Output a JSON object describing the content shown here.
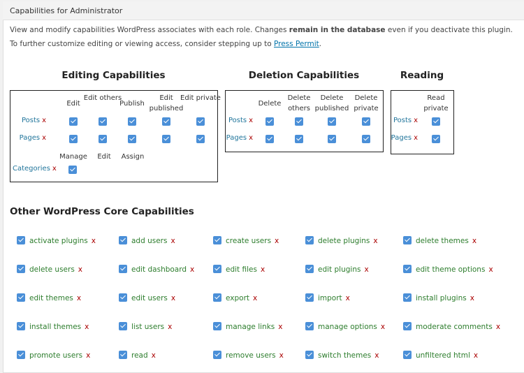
{
  "header": {
    "title": "Capabilities for Administrator"
  },
  "intro": {
    "line1_pre": "View and modify capabilities WordPress associates with each role. Changes ",
    "line1_bold": "remain in the database",
    "line1_post": " even if you deactivate this plugin.",
    "line2_pre": "To further customize editing or viewing access, consider stepping up to ",
    "line2_link": "Press Permit",
    "line2_post": "."
  },
  "editing": {
    "title": "Editing Capabilities",
    "columns": [
      "Edit",
      "Edit others",
      "Publish",
      "Edit published",
      "Edit private"
    ],
    "rows": [
      {
        "label": "Posts",
        "remove": "x"
      },
      {
        "label": "Pages",
        "remove": "x"
      }
    ],
    "tax_columns": [
      "Manage",
      "Edit",
      "Assign"
    ],
    "tax_row": {
      "label": "Categories",
      "remove": "x"
    }
  },
  "deletion": {
    "title": "Deletion Capabilities",
    "columns": [
      "Delete",
      "Delete others",
      "Delete published",
      "Delete private"
    ],
    "rows": [
      {
        "label": "Posts",
        "remove": "x"
      },
      {
        "label": "Pages",
        "remove": "x"
      }
    ]
  },
  "reading": {
    "title": "Reading",
    "columns": [
      "Read private"
    ],
    "rows": [
      {
        "label": "Posts",
        "remove": "x"
      },
      {
        "label": "Pages",
        "remove": "x"
      }
    ]
  },
  "other": {
    "title": "Other WordPress Core Capabilities",
    "remove": "x",
    "items": [
      "activate plugins",
      "add users",
      "create users",
      "delete plugins",
      "delete themes",
      "delete users",
      "edit dashboard",
      "edit files",
      "edit plugins",
      "edit theme options",
      "edit themes",
      "edit users",
      "export",
      "import",
      "install plugins",
      "install themes",
      "list users",
      "manage links",
      "manage options",
      "moderate comments",
      "promote users",
      "read",
      "remove users",
      "switch themes",
      "unfiltered html"
    ]
  },
  "colors": {
    "checkbox": "#4a8fd8",
    "capability_text": "#2d7d2d",
    "remove_x": "#aa0000",
    "link": "#21759b"
  }
}
